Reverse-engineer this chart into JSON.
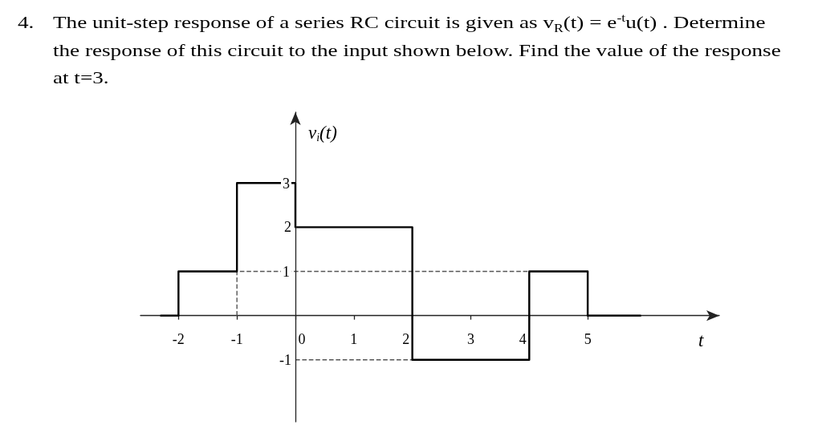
{
  "chart_data": {
    "type": "step",
    "title": "4. The unit-step response of a series RC circuit is given as v$_{R}$(t) = e$^{-t}$u(t) . Determine the response of this circuit to the input shown below. Find the value of the response at t=3.",
    "xlabel": "t",
    "ylabel": "v$_{i}$(t)",
    "xlim": [
      -2.65,
      7.25
    ],
    "ylim": [
      -2.4,
      4.6
    ],
    "xticks": [
      -2,
      -1,
      0,
      1,
      2,
      3,
      4,
      5
    ],
    "yticks": [
      -1,
      1,
      2,
      3
    ],
    "marker": "none",
    "series": [
      {
        "color": "#000000",
        "x": [
          -2.3,
          -2,
          -1,
          0,
          2,
          4,
          5,
          5.9
        ],
        "values": [
          0,
          1,
          3,
          2,
          -1,
          1,
          0,
          0
        ]
      },
      {
        "type": "line",
        "color": "#555555",
        "line_style": "dashed",
        "x": [
          -1,
          -1,
          4
        ],
        "values": [
          0,
          1,
          1
        ]
      },
      {
        "type": "line",
        "color": "#555555",
        "line_style": "dashed",
        "x": [
          0,
          2
        ],
        "values": [
          -1,
          -1
        ]
      }
    ]
  }
}
